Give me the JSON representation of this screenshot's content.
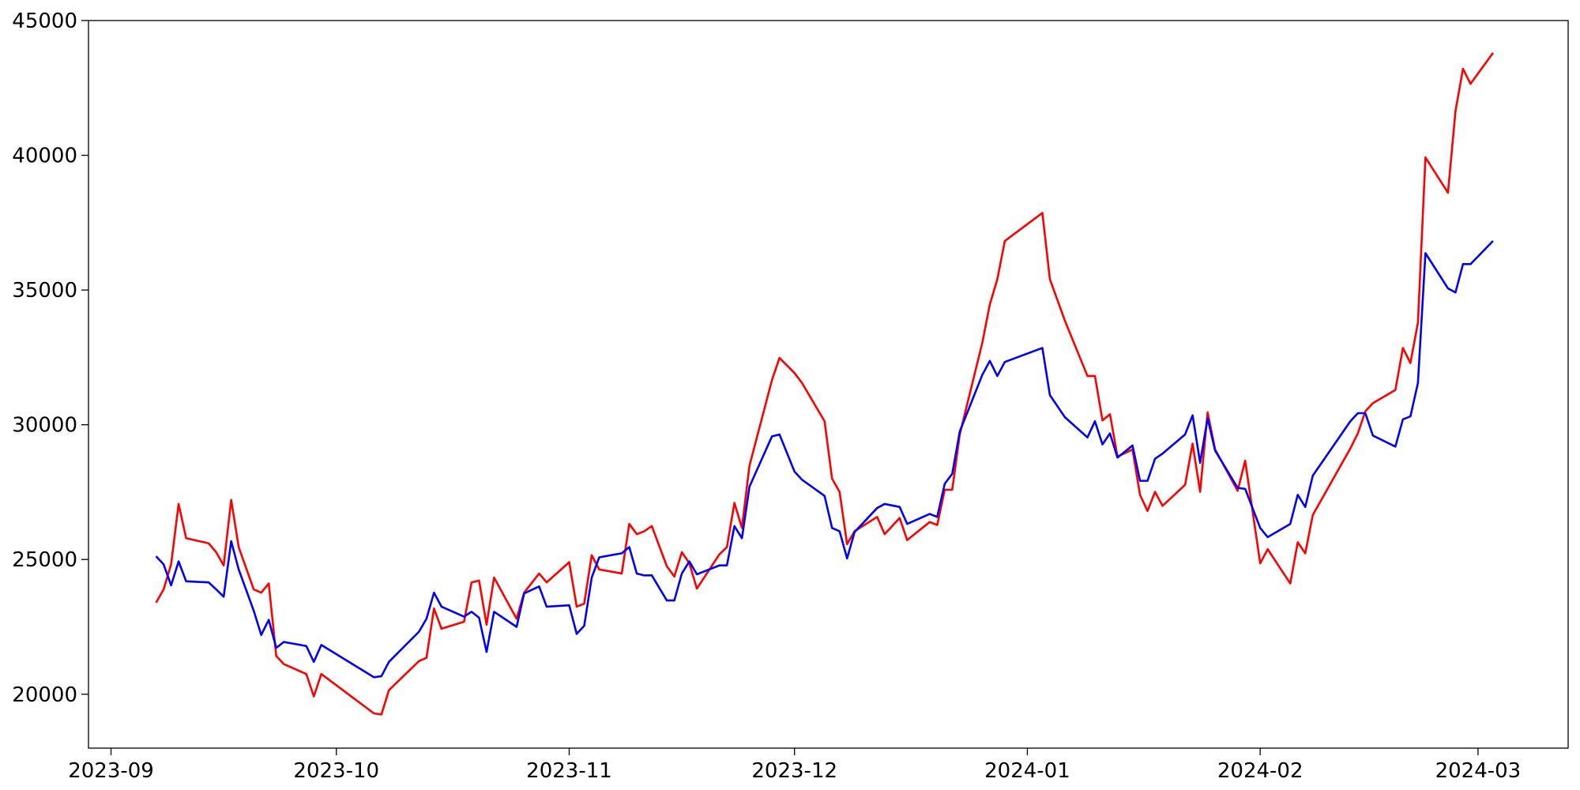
{
  "chart_data": {
    "type": "line",
    "x": [
      "2023-09-07",
      "2023-09-08",
      "2023-09-09",
      "2023-09-10",
      "2023-09-11",
      "2023-09-14",
      "2023-09-15",
      "2023-09-16",
      "2023-09-17",
      "2023-09-18",
      "2023-09-20",
      "2023-09-21",
      "2023-09-22",
      "2023-09-23",
      "2023-09-24",
      "2023-09-27",
      "2023-09-28",
      "2023-09-29",
      "2023-10-06",
      "2023-10-07",
      "2023-10-08",
      "2023-10-12",
      "2023-10-13",
      "2023-10-14",
      "2023-10-15",
      "2023-10-18",
      "2023-10-19",
      "2023-10-20",
      "2023-10-21",
      "2023-10-22",
      "2023-10-25",
      "2023-10-26",
      "2023-10-28",
      "2023-10-29",
      "2023-11-01",
      "2023-11-02",
      "2023-11-03",
      "2023-11-04",
      "2023-11-05",
      "2023-11-08",
      "2023-11-09",
      "2023-11-10",
      "2023-11-11",
      "2023-11-12",
      "2023-11-14",
      "2023-11-15",
      "2023-11-16",
      "2023-11-17",
      "2023-11-18",
      "2023-11-21",
      "2023-11-22",
      "2023-11-23",
      "2023-11-24",
      "2023-11-25",
      "2023-11-28",
      "2023-11-29",
      "2023-12-01",
      "2023-12-02",
      "2023-12-05",
      "2023-12-06",
      "2023-12-07",
      "2023-12-08",
      "2023-12-09",
      "2023-12-12",
      "2023-12-13",
      "2023-12-15",
      "2023-12-16",
      "2023-12-19",
      "2023-12-20",
      "2023-12-21",
      "2023-12-22",
      "2023-12-23",
      "2023-12-26",
      "2023-12-27",
      "2023-12-28",
      "2023-12-29",
      "2024-01-03",
      "2024-01-04",
      "2024-01-06",
      "2024-01-09",
      "2024-01-10",
      "2024-01-11",
      "2024-01-12",
      "2024-01-13",
      "2024-01-15",
      "2024-01-16",
      "2024-01-17",
      "2024-01-18",
      "2024-01-19",
      "2024-01-22",
      "2024-01-23",
      "2024-01-24",
      "2024-01-25",
      "2024-01-26",
      "2024-01-29",
      "2024-01-30",
      "2024-02-01",
      "2024-02-02",
      "2024-02-05",
      "2024-02-06",
      "2024-02-07",
      "2024-02-08",
      "2024-02-13",
      "2024-02-14",
      "2024-02-15",
      "2024-02-16",
      "2024-02-19",
      "2024-02-20",
      "2024-02-21",
      "2024-02-22",
      "2024-02-23",
      "2024-02-26",
      "2024-02-27",
      "2024-02-28",
      "2024-02-29",
      "2024-03-03"
    ],
    "series": [
      {
        "color": "red",
        "values": [
          23400,
          23890,
          24820,
          27060,
          25790,
          25600,
          25270,
          24780,
          27210,
          25460,
          23890,
          23770,
          24110,
          21420,
          21120,
          20750,
          19920,
          20750,
          19290,
          19250,
          20150,
          21230,
          21350,
          23180,
          22430,
          22690,
          24150,
          24220,
          22580,
          24330,
          22800,
          23770,
          24480,
          24150,
          24900,
          23250,
          23360,
          25160,
          24630,
          24480,
          26320,
          25940,
          26050,
          26240,
          24750,
          24370,
          25270,
          24860,
          23920,
          25190,
          25460,
          27100,
          26170,
          28480,
          31660,
          32480,
          31920,
          31550,
          30130,
          28000,
          27510,
          25570,
          26050,
          26580,
          25940,
          26540,
          25720,
          26390,
          26280,
          27590,
          27590,
          29640,
          33040,
          34460,
          35400,
          36820,
          37860,
          35400,
          33860,
          31810,
          31810,
          30160,
          30390,
          28820,
          29080,
          27400,
          26800,
          27510,
          26990,
          27770,
          29300,
          27510,
          30460,
          29080,
          27550,
          28670,
          24860,
          25380,
          24110,
          25640,
          25230,
          26650,
          29120,
          29680,
          30500,
          30800,
          31290,
          32850,
          32290,
          33790,
          39920,
          38610,
          41640,
          43210,
          42650,
          43800
        ]
      },
      {
        "color": "blue",
        "values": [
          25120,
          24820,
          24040,
          24930,
          24190,
          24150,
          23890,
          23620,
          25680,
          24630,
          23100,
          22200,
          22760,
          21720,
          21940,
          21790,
          21200,
          21830,
          20630,
          20670,
          21200,
          22320,
          22800,
          23770,
          23250,
          22880,
          23060,
          22840,
          21570,
          23060,
          22500,
          23740,
          24000,
          23250,
          23300,
          22240,
          22540,
          24330,
          25080,
          25230,
          25460,
          24480,
          24410,
          24410,
          23480,
          23480,
          24480,
          24930,
          24450,
          24780,
          24780,
          26240,
          25790,
          27700,
          29570,
          29640,
          28260,
          27960,
          27360,
          26170,
          26050,
          25040,
          26020,
          26910,
          27060,
          26950,
          26320,
          26690,
          26580,
          27810,
          28180,
          29750,
          31850,
          32370,
          31810,
          32330,
          32850,
          31100,
          30280,
          29530,
          30130,
          29270,
          29680,
          28780,
          29230,
          27920,
          27920,
          28740,
          28930,
          29640,
          30350,
          28590,
          30240,
          29040,
          27660,
          27620,
          26170,
          25830,
          26320,
          27400,
          26950,
          28110,
          30130,
          30430,
          30430,
          29600,
          29190,
          30200,
          30310,
          31550,
          36370,
          35060,
          34910,
          35960,
          35960,
          36820
        ]
      }
    ],
    "xlim": [
      "2023-08-29",
      "2024-03-13"
    ],
    "xticks": [
      "2023-09",
      "2023-10",
      "2023-11",
      "2023-12",
      "2024-01",
      "2024-02",
      "2024-03"
    ],
    "ylim": [
      18000,
      45000
    ],
    "yticks": [
      20000,
      25000,
      30000,
      35000,
      40000,
      45000
    ],
    "grid": false
  }
}
